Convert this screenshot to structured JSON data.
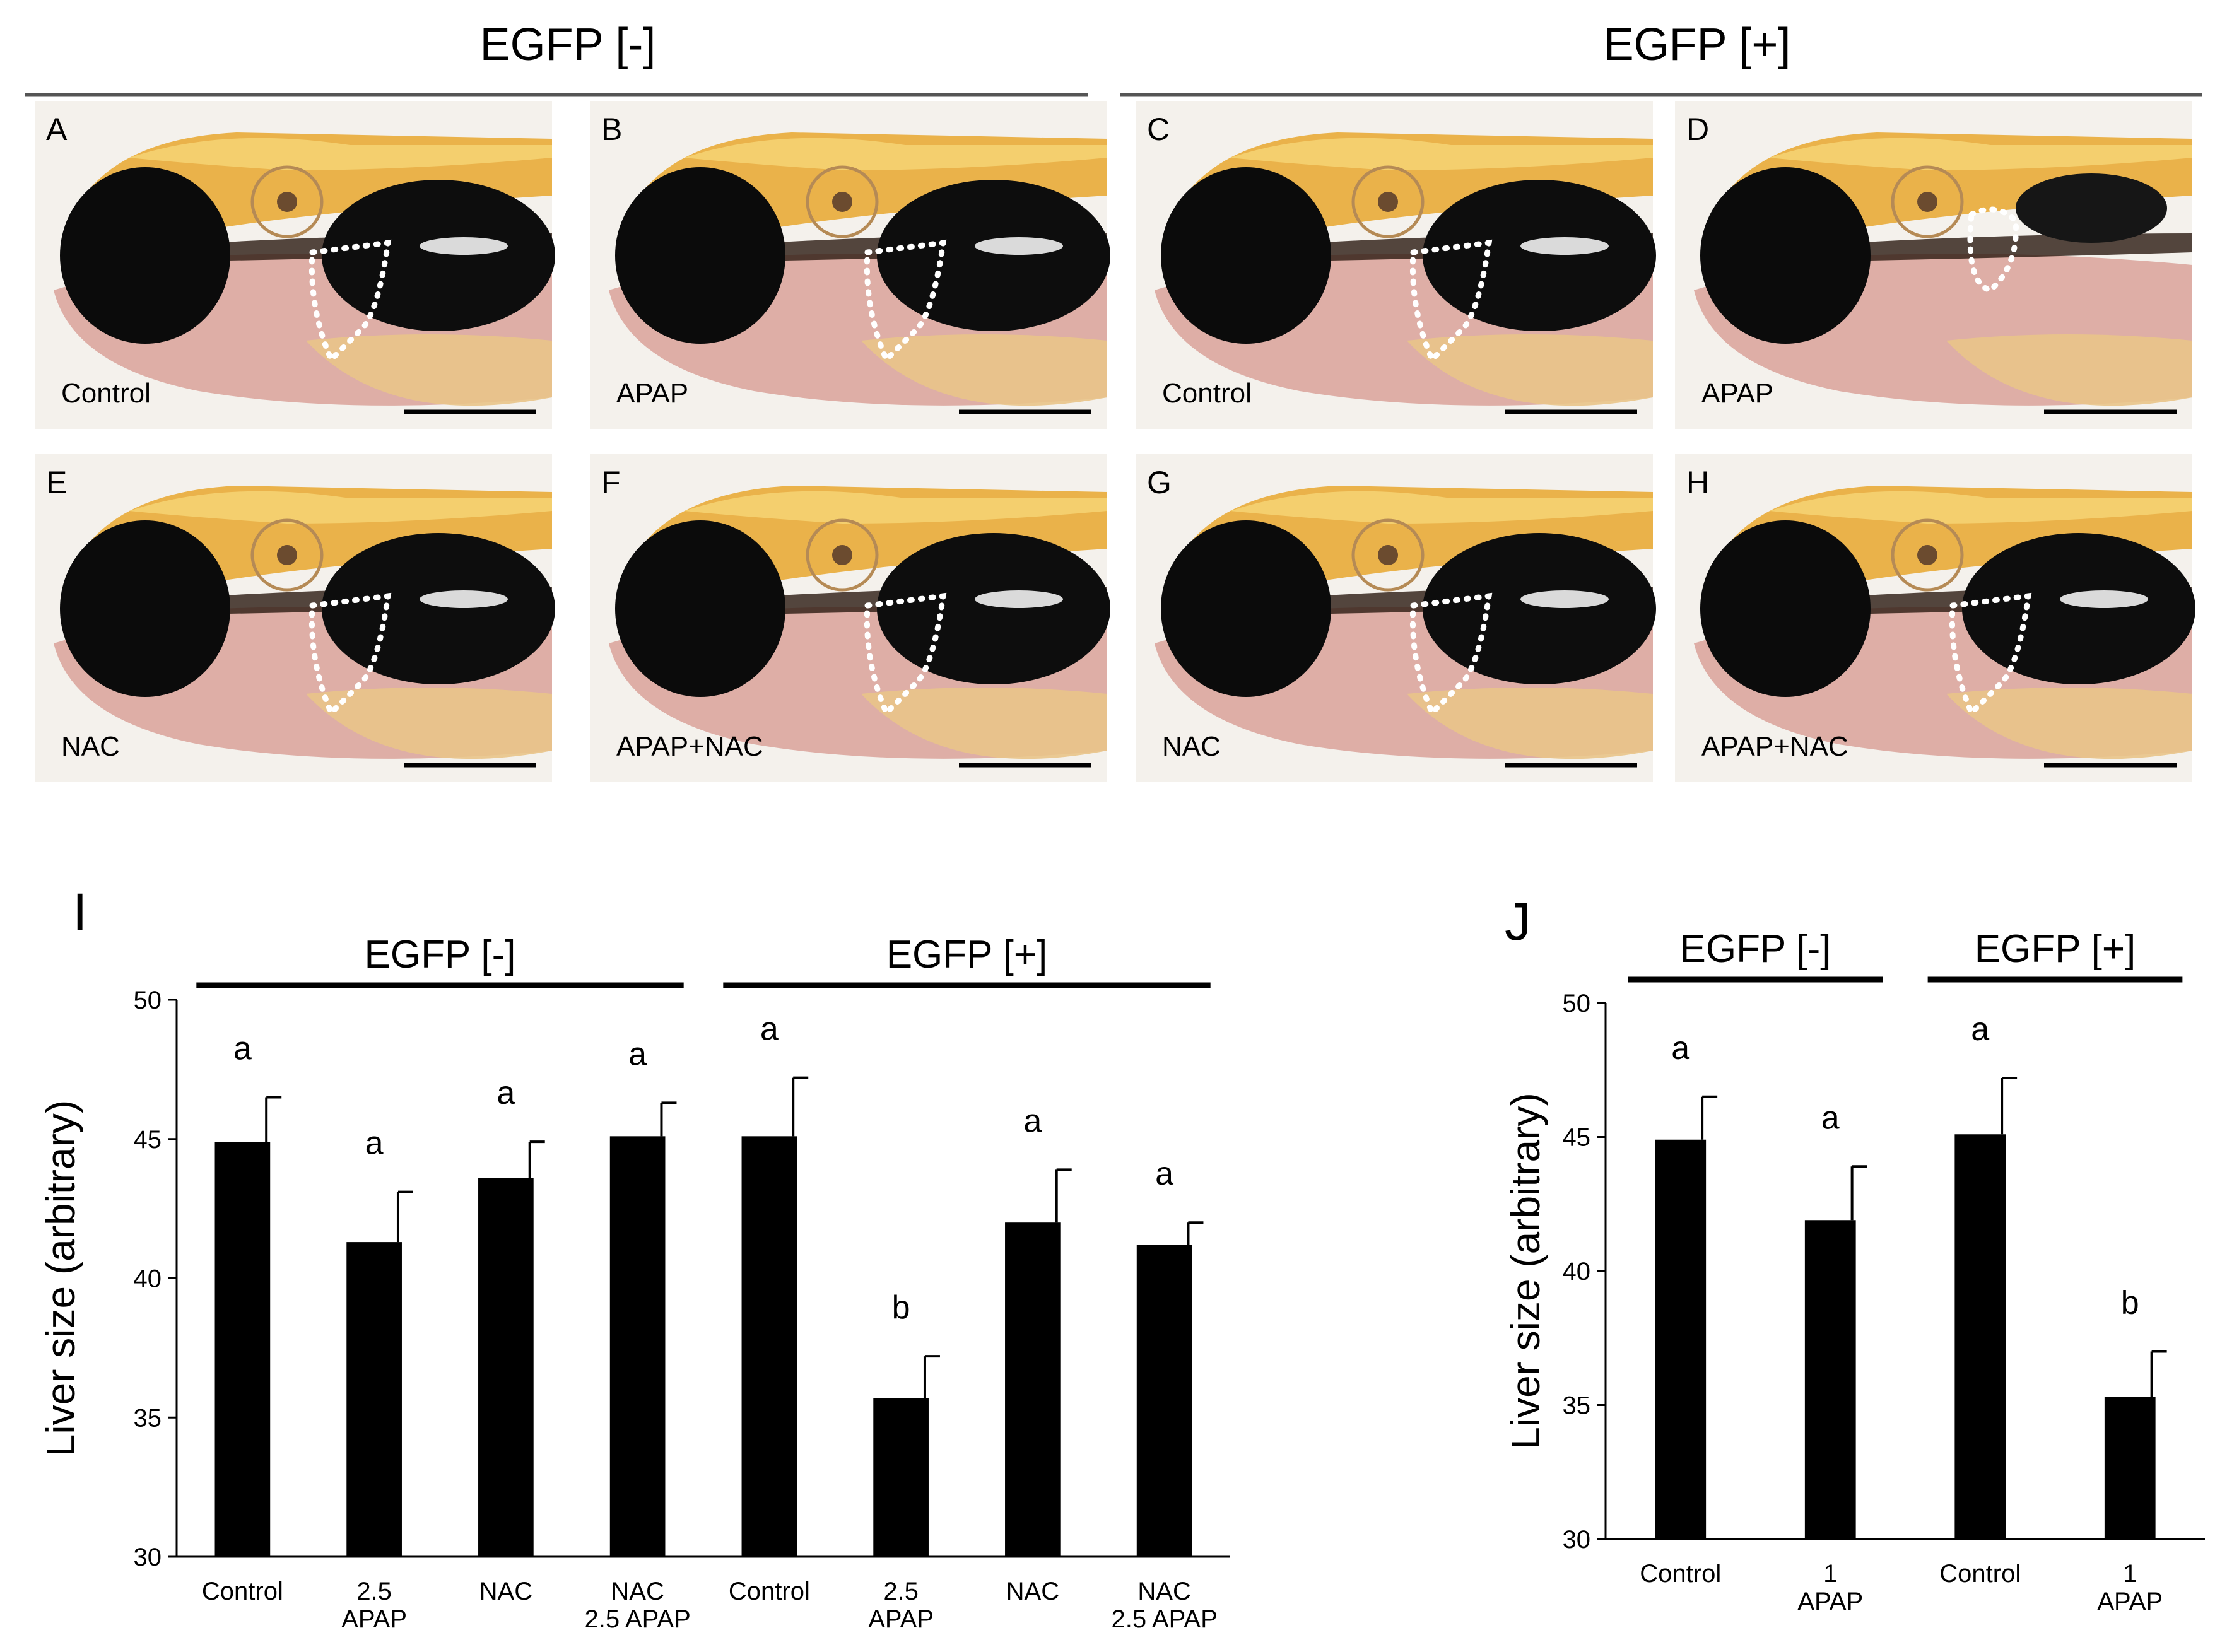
{
  "top": {
    "group_left": "EGFP [-]",
    "group_right": "EGFP [+]",
    "panels": [
      {
        "letter": "A",
        "caption": "Control",
        "variant": "normal"
      },
      {
        "letter": "B",
        "caption": "APAP",
        "variant": "normal"
      },
      {
        "letter": "C",
        "caption": "Control",
        "variant": "normal"
      },
      {
        "letter": "D",
        "caption": "APAP",
        "variant": "small"
      },
      {
        "letter": "E",
        "caption": "NAC",
        "variant": "normal"
      },
      {
        "letter": "F",
        "caption": "APAP+NAC",
        "variant": "normal"
      },
      {
        "letter": "G",
        "caption": "NAC",
        "variant": "normal"
      },
      {
        "letter": "H",
        "caption": "APAP+NAC",
        "variant": "normal"
      }
    ]
  },
  "colors": {
    "bar": "#000000",
    "yolk": "#eab24a",
    "tissue": "#d9a29a",
    "eye": "#0b0b0b"
  },
  "chart_data": [
    {
      "type": "bar",
      "panel_letter": "I",
      "ylabel": "Liver size (arbitrary)",
      "ylim": [
        30,
        50
      ],
      "yticks": [
        30,
        35,
        40,
        45,
        50
      ],
      "groups": [
        {
          "label": "EGFP [-]",
          "from": 0,
          "to": 3
        },
        {
          "label": "EGFP [+]",
          "from": 4,
          "to": 7
        }
      ],
      "categories": [
        [
          "Control"
        ],
        [
          "2.5",
          "APAP"
        ],
        [
          "NAC"
        ],
        [
          "NAC",
          "2.5 APAP"
        ],
        [
          "Control"
        ],
        [
          "2.5",
          "APAP"
        ],
        [
          "NAC"
        ],
        [
          "NAC",
          "2.5 APAP"
        ]
      ],
      "values": [
        44.9,
        41.3,
        43.6,
        45.1,
        45.1,
        35.7,
        42.0,
        41.2
      ],
      "errors": [
        1.6,
        1.8,
        1.3,
        1.2,
        2.1,
        1.5,
        1.9,
        0.8
      ],
      "letters": [
        "a",
        "a",
        "a",
        "a",
        "a",
        "b",
        "a",
        "a"
      ]
    },
    {
      "type": "bar",
      "panel_letter": "J",
      "ylabel": "Liver size (arbitrary)",
      "ylim": [
        30,
        50
      ],
      "yticks": [
        30,
        35,
        40,
        45,
        50
      ],
      "groups": [
        {
          "label": "EGFP [-]",
          "from": 0,
          "to": 1
        },
        {
          "label": "EGFP [+]",
          "from": 2,
          "to": 3
        }
      ],
      "categories": [
        [
          "Control"
        ],
        [
          "1",
          "APAP"
        ],
        [
          "Control"
        ],
        [
          "1",
          "APAP"
        ]
      ],
      "values": [
        44.9,
        41.9,
        45.1,
        35.3
      ],
      "errors": [
        1.6,
        2.0,
        2.1,
        1.7
      ],
      "letters": [
        "a",
        "a",
        "a",
        "b"
      ]
    }
  ]
}
